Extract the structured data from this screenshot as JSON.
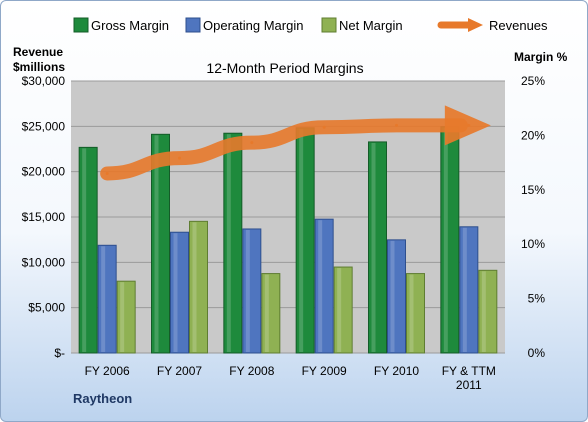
{
  "colors": {
    "gross": "#1e8a3c",
    "gross_dark": "#145c28",
    "operating": "#4f75bf",
    "operating_dark": "#2e4f8e",
    "net": "#8fb153",
    "net_dark": "#5f7d32",
    "revenue": "#e7792b"
  },
  "chart_data": {
    "type": "bar",
    "title": "12-Month Period Margins",
    "categories": [
      "FY 2006",
      "FY 2007",
      "FY 2008",
      "FY 2009",
      "FY 2010",
      "FY & TTM 2011"
    ],
    "series": [
      {
        "name": "Gross Margin",
        "axis": "right",
        "values": [
          18.9,
          20.1,
          20.2,
          20.7,
          19.4,
          20.8
        ]
      },
      {
        "name": "Operating Margin",
        "axis": "right",
        "values": [
          9.9,
          11.1,
          11.4,
          12.3,
          10.4,
          11.6
        ]
      },
      {
        "name": "Net Margin",
        "axis": "right",
        "values": [
          6.6,
          12.1,
          7.3,
          7.9,
          7.3,
          7.6
        ]
      },
      {
        "name": "Revenues",
        "axis": "left",
        "type": "arrow-line",
        "values": [
          19800,
          21500,
          23200,
          24900,
          25100,
          25100
        ]
      }
    ],
    "left_axis": {
      "label_line1": "Revenue",
      "label_line2": "$millions",
      "range": [
        0,
        30000
      ],
      "ticks": [
        "$-",
        "$5,000",
        "$10,000",
        "$15,000",
        "$20,000",
        "$25,000",
        "$30,000"
      ]
    },
    "right_axis": {
      "label": "Margin %",
      "range": [
        0,
        25
      ],
      "ticks": [
        "0%",
        "5%",
        "10%",
        "15%",
        "20%",
        "25%"
      ]
    },
    "category_labels": [
      [
        "FY 2006"
      ],
      [
        "FY 2007"
      ],
      [
        "FY 2008"
      ],
      [
        "FY 2009"
      ],
      [
        "FY 2010"
      ],
      [
        "FY & TTM",
        "2011"
      ]
    ],
    "legend": [
      "Gross Margin",
      "Operating Margin",
      "Net Margin",
      "Revenues"
    ],
    "legend_position": "top",
    "grid": true,
    "company": "Raytheon"
  }
}
